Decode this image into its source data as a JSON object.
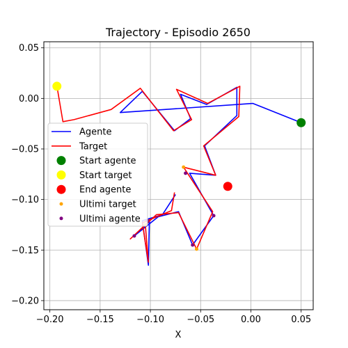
{
  "chart_data": {
    "type": "line",
    "title": "Trajectory - Episodio 2650",
    "xlabel": "X",
    "ylabel": "Y",
    "xlim": [
      -0.206,
      0.062
    ],
    "ylim": [
      -0.209,
      0.056
    ],
    "xticks": [
      -0.2,
      -0.15,
      -0.1,
      -0.05,
      0.0,
      0.05
    ],
    "xtick_labels": [
      "−0.20",
      "−0.15",
      "−0.10",
      "−0.05",
      "0.00",
      "0.05"
    ],
    "yticks": [
      -0.2,
      -0.15,
      -0.1,
      -0.05,
      0.0,
      0.05
    ],
    "ytick_labels": [
      "−0.20",
      "−0.15",
      "−0.10",
      "−0.05",
      "0.00",
      "0.05"
    ],
    "grid": true,
    "legend_placement": "center-left",
    "series": [
      {
        "name": "Agente",
        "color": "#0000ff",
        "kind": "line",
        "x": [
          0.05,
          0.002,
          -0.13,
          -0.108,
          -0.076,
          -0.06,
          -0.07,
          -0.044,
          -0.014,
          -0.014,
          -0.046,
          -0.035,
          -0.061,
          -0.037,
          -0.058,
          -0.072,
          -0.092,
          -0.116,
          -0.101,
          -0.102,
          -0.108,
          -0.088,
          -0.075
        ],
        "y": [
          -0.024,
          -0.005,
          -0.014,
          0.007,
          -0.032,
          -0.02,
          0.004,
          -0.006,
          0.011,
          -0.017,
          -0.047,
          -0.076,
          -0.074,
          -0.116,
          -0.145,
          -0.112,
          -0.117,
          -0.136,
          -0.122,
          -0.165,
          -0.121,
          -0.115,
          -0.095
        ]
      },
      {
        "name": "Target",
        "color": "#ff0000",
        "kind": "line",
        "x": [
          -0.193,
          -0.187,
          -0.176,
          -0.139,
          -0.11,
          -0.077,
          -0.059,
          -0.074,
          -0.043,
          -0.011,
          -0.012,
          -0.047,
          -0.035,
          -0.067,
          -0.038,
          -0.054,
          -0.072,
          -0.094,
          -0.12,
          -0.105,
          -0.102,
          -0.108,
          -0.079,
          -0.076
        ],
        "y": [
          0.012,
          -0.023,
          -0.021,
          -0.011,
          0.01,
          -0.032,
          -0.021,
          0.009,
          -0.005,
          0.012,
          -0.018,
          -0.047,
          -0.076,
          -0.068,
          -0.112,
          -0.149,
          -0.113,
          -0.115,
          -0.139,
          -0.125,
          -0.162,
          -0.123,
          -0.111,
          -0.093
        ]
      }
    ],
    "points": [
      {
        "name": "Start agente",
        "color": "#008000",
        "x": 0.05,
        "y": -0.024,
        "size": "large"
      },
      {
        "name": "Start target",
        "color": "#ffff00",
        "x": -0.193,
        "y": 0.012,
        "size": "large"
      },
      {
        "name": "End agente",
        "color": "#ff0000",
        "x": -0.023,
        "y": -0.087,
        "size": "large"
      }
    ],
    "scatter_groups": [
      {
        "name": "Ultimi target",
        "color": "#ffa500",
        "points": [
          [
            -0.067,
            -0.068
          ],
          [
            -0.054,
            -0.149
          ],
          [
            -0.105,
            -0.125
          ],
          [
            -0.023,
            -0.087
          ]
        ]
      },
      {
        "name": "Ultimi agente",
        "color": "#800080",
        "points": [
          [
            -0.065,
            -0.074
          ],
          [
            -0.037,
            -0.116
          ],
          [
            -0.058,
            -0.145
          ],
          [
            -0.116,
            -0.136
          ],
          [
            -0.103,
            -0.121
          ]
        ]
      }
    ],
    "legend": [
      {
        "label": "Agente",
        "kind": "line",
        "color": "#0000ff"
      },
      {
        "label": "Target",
        "kind": "line",
        "color": "#ff0000"
      },
      {
        "label": "Start agente",
        "kind": "bigdot",
        "color": "#008000"
      },
      {
        "label": "Start target",
        "kind": "bigdot",
        "color": "#ffff00"
      },
      {
        "label": "End agente",
        "kind": "bigdot",
        "color": "#ff0000"
      },
      {
        "label": "Ultimi target",
        "kind": "smalldot",
        "color": "#ffa500"
      },
      {
        "label": "Ultimi agente",
        "kind": "smalldot",
        "color": "#800080"
      }
    ]
  }
}
